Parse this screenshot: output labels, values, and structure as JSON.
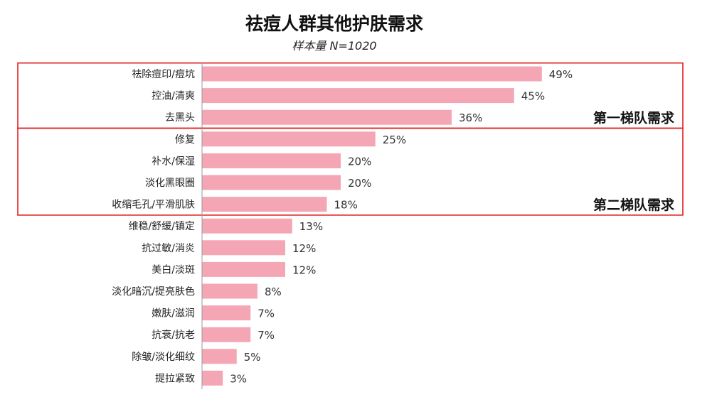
{
  "chart_data": {
    "type": "bar",
    "orientation": "horizontal",
    "title": "祛痘人群其他护肤需求",
    "subtitle": "样本量 N=1020",
    "xlabel": "",
    "ylabel": "",
    "xlim": [
      0,
      50
    ],
    "value_suffix": "%",
    "grid": false,
    "categories": [
      "祛除痘印/痘坑",
      "控油/清爽",
      "去黑头",
      "修复",
      "补水/保湿",
      "淡化黑眼圈",
      "收缩毛孔/平滑肌肤",
      "维稳/舒缓/镇定",
      "抗过敏/消炎",
      "美白/淡斑",
      "淡化暗沉/提亮肤色",
      "嫩肤/滋润",
      "抗衰/抗老",
      "除皱/淡化细纹",
      "提拉紧致"
    ],
    "values": [
      49,
      45,
      36,
      25,
      20,
      20,
      18,
      13,
      12,
      12,
      8,
      7,
      7,
      5,
      3
    ],
    "bar_color": "#f4a6b4",
    "axis_color": "#999999",
    "annotations": [
      {
        "label": "第一梯队需求",
        "first_index": 0,
        "last_index": 2,
        "box_color": "#e02020"
      },
      {
        "label": "第二梯队需求",
        "first_index": 3,
        "last_index": 6,
        "box_color": "#e02020"
      }
    ]
  }
}
